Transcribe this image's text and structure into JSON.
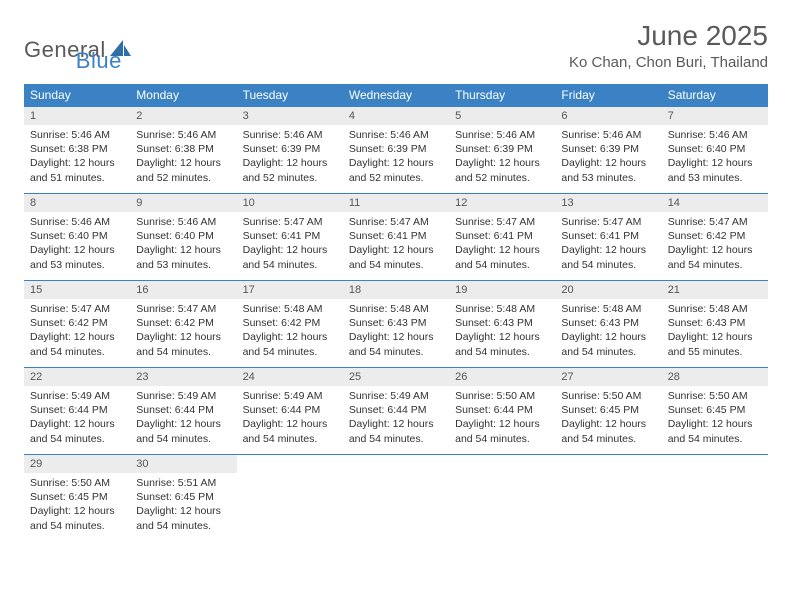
{
  "logo": {
    "text1": "General",
    "text2": "Blue"
  },
  "title": "June 2025",
  "location": "Ko Chan, Chon Buri, Thailand",
  "colors": {
    "header_bg": "#3b82c4",
    "header_text": "#ffffff",
    "daynum_bg": "#ececec",
    "text": "#333333",
    "logo_gray": "#5a5a5a",
    "logo_blue": "#3b82c4",
    "week_border": "#3b82c4"
  },
  "typography": {
    "title_fontsize": 28,
    "location_fontsize": 15,
    "dayhead_fontsize": 12,
    "body_fontsize": 10.5,
    "logo_fontsize": 22
  },
  "day_headers": [
    "Sunday",
    "Monday",
    "Tuesday",
    "Wednesday",
    "Thursday",
    "Friday",
    "Saturday"
  ],
  "weeks": [
    [
      {
        "day": "1",
        "sunrise": "5:46 AM",
        "sunset": "6:38 PM",
        "daylight": "12 hours and 51 minutes."
      },
      {
        "day": "2",
        "sunrise": "5:46 AM",
        "sunset": "6:38 PM",
        "daylight": "12 hours and 52 minutes."
      },
      {
        "day": "3",
        "sunrise": "5:46 AM",
        "sunset": "6:39 PM",
        "daylight": "12 hours and 52 minutes."
      },
      {
        "day": "4",
        "sunrise": "5:46 AM",
        "sunset": "6:39 PM",
        "daylight": "12 hours and 52 minutes."
      },
      {
        "day": "5",
        "sunrise": "5:46 AM",
        "sunset": "6:39 PM",
        "daylight": "12 hours and 52 minutes."
      },
      {
        "day": "6",
        "sunrise": "5:46 AM",
        "sunset": "6:39 PM",
        "daylight": "12 hours and 53 minutes."
      },
      {
        "day": "7",
        "sunrise": "5:46 AM",
        "sunset": "6:40 PM",
        "daylight": "12 hours and 53 minutes."
      }
    ],
    [
      {
        "day": "8",
        "sunrise": "5:46 AM",
        "sunset": "6:40 PM",
        "daylight": "12 hours and 53 minutes."
      },
      {
        "day": "9",
        "sunrise": "5:46 AM",
        "sunset": "6:40 PM",
        "daylight": "12 hours and 53 minutes."
      },
      {
        "day": "10",
        "sunrise": "5:47 AM",
        "sunset": "6:41 PM",
        "daylight": "12 hours and 54 minutes."
      },
      {
        "day": "11",
        "sunrise": "5:47 AM",
        "sunset": "6:41 PM",
        "daylight": "12 hours and 54 minutes."
      },
      {
        "day": "12",
        "sunrise": "5:47 AM",
        "sunset": "6:41 PM",
        "daylight": "12 hours and 54 minutes."
      },
      {
        "day": "13",
        "sunrise": "5:47 AM",
        "sunset": "6:41 PM",
        "daylight": "12 hours and 54 minutes."
      },
      {
        "day": "14",
        "sunrise": "5:47 AM",
        "sunset": "6:42 PM",
        "daylight": "12 hours and 54 minutes."
      }
    ],
    [
      {
        "day": "15",
        "sunrise": "5:47 AM",
        "sunset": "6:42 PM",
        "daylight": "12 hours and 54 minutes."
      },
      {
        "day": "16",
        "sunrise": "5:47 AM",
        "sunset": "6:42 PM",
        "daylight": "12 hours and 54 minutes."
      },
      {
        "day": "17",
        "sunrise": "5:48 AM",
        "sunset": "6:42 PM",
        "daylight": "12 hours and 54 minutes."
      },
      {
        "day": "18",
        "sunrise": "5:48 AM",
        "sunset": "6:43 PM",
        "daylight": "12 hours and 54 minutes."
      },
      {
        "day": "19",
        "sunrise": "5:48 AM",
        "sunset": "6:43 PM",
        "daylight": "12 hours and 54 minutes."
      },
      {
        "day": "20",
        "sunrise": "5:48 AM",
        "sunset": "6:43 PM",
        "daylight": "12 hours and 54 minutes."
      },
      {
        "day": "21",
        "sunrise": "5:48 AM",
        "sunset": "6:43 PM",
        "daylight": "12 hours and 55 minutes."
      }
    ],
    [
      {
        "day": "22",
        "sunrise": "5:49 AM",
        "sunset": "6:44 PM",
        "daylight": "12 hours and 54 minutes."
      },
      {
        "day": "23",
        "sunrise": "5:49 AM",
        "sunset": "6:44 PM",
        "daylight": "12 hours and 54 minutes."
      },
      {
        "day": "24",
        "sunrise": "5:49 AM",
        "sunset": "6:44 PM",
        "daylight": "12 hours and 54 minutes."
      },
      {
        "day": "25",
        "sunrise": "5:49 AM",
        "sunset": "6:44 PM",
        "daylight": "12 hours and 54 minutes."
      },
      {
        "day": "26",
        "sunrise": "5:50 AM",
        "sunset": "6:44 PM",
        "daylight": "12 hours and 54 minutes."
      },
      {
        "day": "27",
        "sunrise": "5:50 AM",
        "sunset": "6:45 PM",
        "daylight": "12 hours and 54 minutes."
      },
      {
        "day": "28",
        "sunrise": "5:50 AM",
        "sunset": "6:45 PM",
        "daylight": "12 hours and 54 minutes."
      }
    ],
    [
      {
        "day": "29",
        "sunrise": "5:50 AM",
        "sunset": "6:45 PM",
        "daylight": "12 hours and 54 minutes."
      },
      {
        "day": "30",
        "sunrise": "5:51 AM",
        "sunset": "6:45 PM",
        "daylight": "12 hours and 54 minutes."
      },
      null,
      null,
      null,
      null,
      null
    ]
  ],
  "labels": {
    "sunrise": "Sunrise:",
    "sunset": "Sunset:",
    "daylight": "Daylight:"
  }
}
